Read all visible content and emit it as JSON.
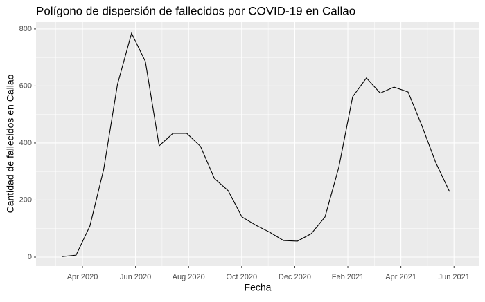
{
  "chart_data": {
    "type": "line",
    "title": "Polígono de dispersión de fallecidos por COVID-19 en Callao",
    "x_label": "Fecha",
    "y_label": "Cantidad de fallecidos en Callao",
    "x": [
      3.24,
      3.76,
      4.28,
      4.8,
      5.32,
      5.85,
      6.37,
      6.89,
      7.41,
      7.93,
      8.45,
      8.97,
      9.49,
      10.01,
      10.53,
      11.06,
      11.58,
      12.1,
      12.62,
      13.14,
      13.66,
      14.18,
      14.7,
      15.22,
      15.74,
      16.27,
      16.79,
      17.31,
      17.83
    ],
    "series": [
      {
        "color": "#000000",
        "values": [
          2,
          7,
          109,
          308,
          606,
          785,
          686,
          390,
          434,
          434,
          388,
          276,
          233,
          141,
          112,
          87,
          58,
          56,
          82,
          141,
          315,
          562,
          628,
          575,
          596,
          579,
          461,
          332,
          230
        ]
      }
    ],
    "xlim": [
      2.25,
      18.96
    ],
    "xticks": [
      {
        "value": 4,
        "label": "Apr 2020"
      },
      {
        "value": 6,
        "label": "Jun 2020"
      },
      {
        "value": 8,
        "label": "Aug 2020"
      },
      {
        "value": 10,
        "label": "Oct 2020"
      },
      {
        "value": 12,
        "label": "Dec 2020"
      },
      {
        "value": 14,
        "label": "Feb 2021"
      },
      {
        "value": 16,
        "label": "Apr 2021"
      },
      {
        "value": 18,
        "label": "Jun 2021"
      }
    ],
    "ylim": [
      -31.5,
      824
    ],
    "yticks": [
      0,
      200,
      400,
      600,
      800
    ],
    "grid": true
  }
}
